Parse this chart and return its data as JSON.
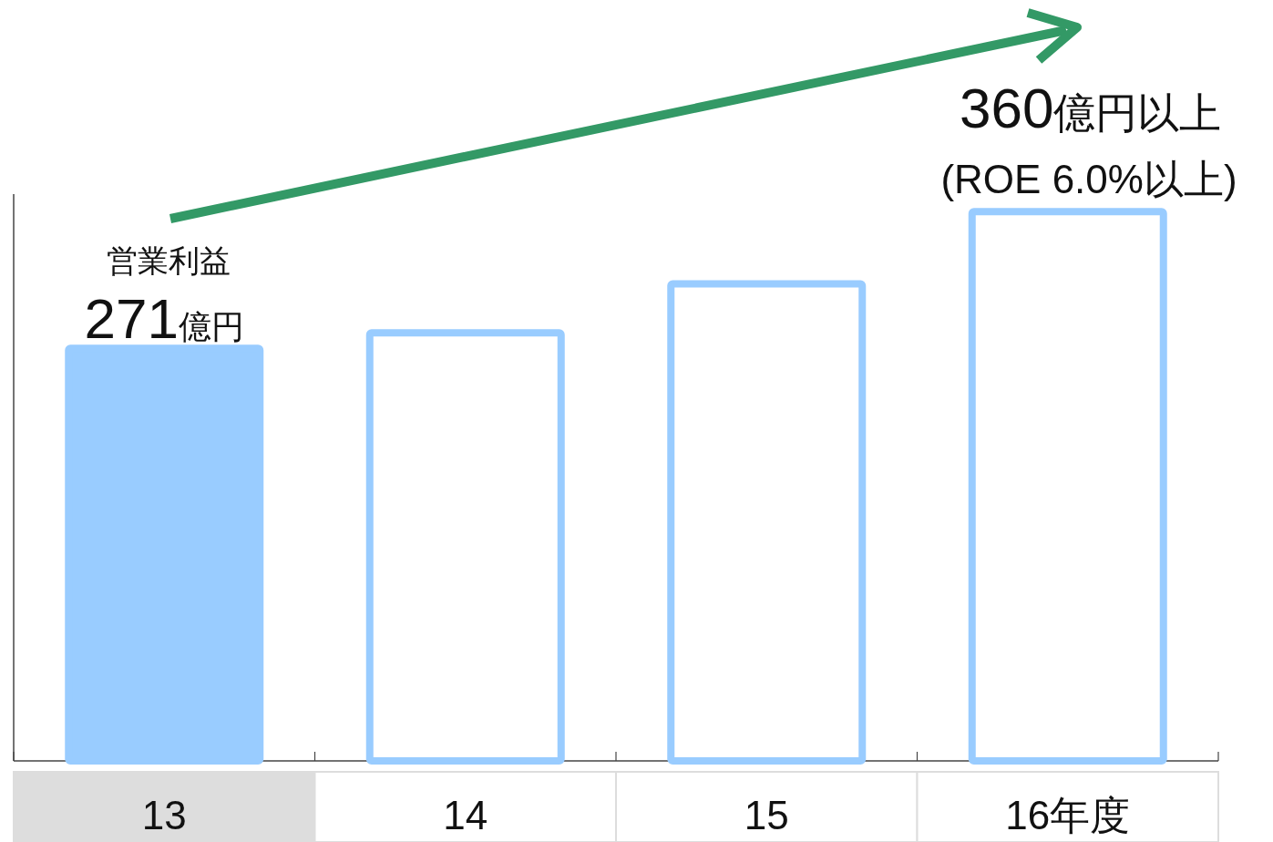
{
  "chart_data": {
    "type": "bar",
    "categories": [
      "13",
      "14",
      "15",
      "16年度"
    ],
    "series": [
      {
        "color": "#99ccff",
        "colors": [
          "#99ccff",
          "#ffffff",
          "#ffffff",
          "#ffffff"
        ],
        "line_style": "solid",
        "values": [
          271,
          281,
          313,
          360
        ],
        "value_labels": [
          "271億円",
          null,
          null,
          "360億円以上"
        ]
      }
    ],
    "annotations": [
      "営業利益",
      "(ROE 6.0%以上)"
    ]
  }
}
